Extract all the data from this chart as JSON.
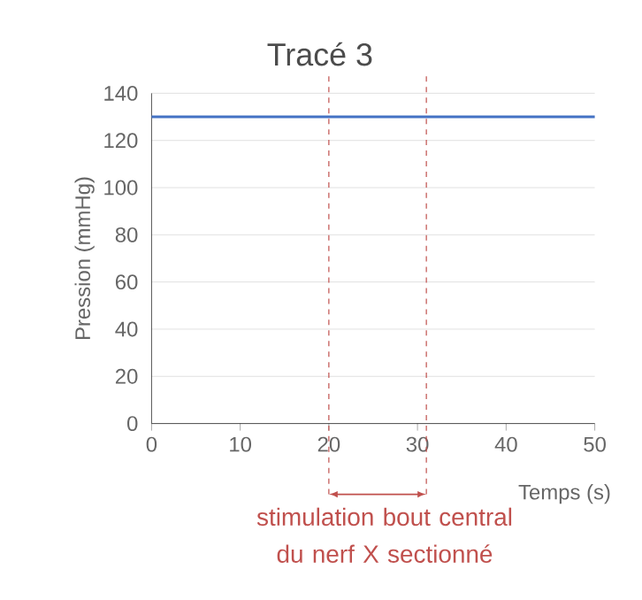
{
  "chart_data": {
    "type": "line",
    "title": "Tracé 3",
    "xlabel": "Temps (s)",
    "ylabel": "Pression (mmHg)",
    "x": [
      0,
      50
    ],
    "series": [
      {
        "color": "#4472c4",
        "values": [
          130,
          130
        ]
      }
    ],
    "xlim": [
      0,
      50
    ],
    "xticks": [
      0,
      10,
      20,
      30,
      40,
      50
    ],
    "ylim": [
      0,
      140
    ],
    "yticks": [
      0,
      20,
      40,
      60,
      80,
      100,
      120,
      140
    ],
    "grid": "y",
    "marker": "none",
    "line_style": "solid",
    "ref_lines": [
      {
        "axis": "x",
        "value": 20,
        "color": "#c0504d",
        "line_style": "dashed"
      },
      {
        "axis": "x",
        "value": 31,
        "color": "#c0504d",
        "line_style": "dashed"
      }
    ],
    "annotations": [
      "stimulation bout central du nerf X sectionné"
    ]
  }
}
